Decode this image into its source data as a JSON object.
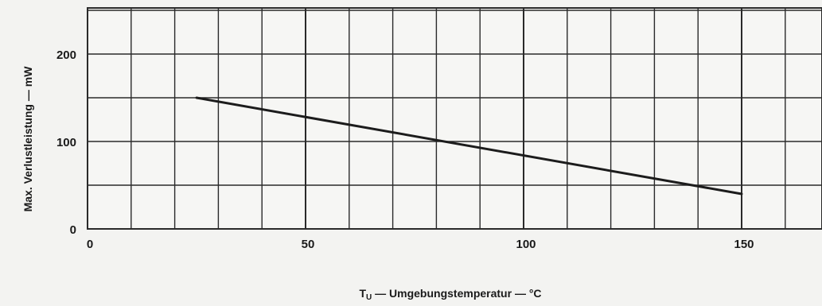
{
  "chart_data": {
    "type": "line",
    "title": "",
    "xlabel": {
      "main": "T",
      "subscript": "U",
      "rest": " — Umgebungstemperatur — °C"
    },
    "ylabel": "Max. Verlustleistung — mW",
    "xlim": [
      0,
      170
    ],
    "ylim": [
      0,
      250
    ],
    "x_ticks": [
      0,
      50,
      100,
      150
    ],
    "y_ticks": [
      0,
      100,
      200
    ],
    "x_minor_step": 10,
    "y_minor_step": 50,
    "grid": true,
    "series": [
      {
        "x": [
          25,
          150
        ],
        "y": [
          150,
          40
        ]
      }
    ],
    "colors": {
      "line": "#1c1c1c",
      "grid": "#2a2a2a",
      "paper": "#f3f3f1"
    }
  }
}
